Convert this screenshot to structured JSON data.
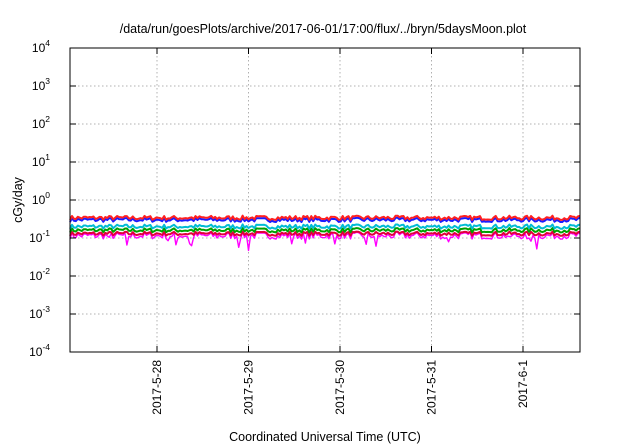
{
  "chart_data": {
    "type": "line",
    "title": "/data/run/goesPlots/archive/2017-06-01/17:00/flux/../bryn/5daysMoon.plot",
    "xlabel": "Coordinated Universal Time (UTC)",
    "ylabel": "cGy/day",
    "yscale": "log",
    "ylim": [
      0.0001,
      10000
    ],
    "y_ticks": [
      {
        "base": "10",
        "exp": "-4"
      },
      {
        "base": "10",
        "exp": "-3"
      },
      {
        "base": "10",
        "exp": "-2"
      },
      {
        "base": "10",
        "exp": "-1"
      },
      {
        "base": "10",
        "exp": "0"
      },
      {
        "base": "10",
        "exp": "1"
      },
      {
        "base": "10",
        "exp": "2"
      },
      {
        "base": "10",
        "exp": "3"
      },
      {
        "base": "10",
        "exp": "4"
      }
    ],
    "xlim_days": [
      "2017-05-27 04:00",
      "2017-06-01 17:00"
    ],
    "x_ticks": [
      "2017-5-28",
      "2017-5-29",
      "2017-5-30",
      "2017-5-31",
      "2017-6-1"
    ],
    "grid": true,
    "series": [
      {
        "color": "#ff00ff",
        "level": 0.115,
        "dips": true
      },
      {
        "color": "#e0003a",
        "level": 0.13,
        "dips": false
      },
      {
        "color": "#00a000",
        "level": 0.16,
        "dips": false
      },
      {
        "color": "#00bcd4",
        "level": 0.2,
        "dips": false
      },
      {
        "color": "#1a1aff",
        "level": 0.3,
        "dips": false
      },
      {
        "color": "#ff2020",
        "level": 0.34,
        "dips": false
      }
    ]
  }
}
